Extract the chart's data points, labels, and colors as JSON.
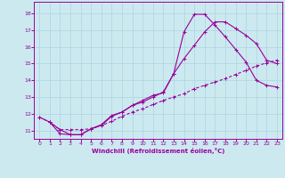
{
  "xlabel": "Windchill (Refroidissement éolien,°C)",
  "bg_color": "#cce9f0",
  "grid_color": "#b0d8e4",
  "line_color": "#990099",
  "xlim": [
    -0.5,
    23.5
  ],
  "ylim": [
    10.5,
    18.7
  ],
  "yticks": [
    11,
    12,
    13,
    14,
    15,
    16,
    17,
    18
  ],
  "xticks": [
    0,
    1,
    2,
    3,
    4,
    5,
    6,
    7,
    8,
    9,
    10,
    11,
    12,
    13,
    14,
    15,
    16,
    17,
    18,
    19,
    20,
    21,
    22,
    23
  ],
  "line1_x": [
    0,
    1,
    2,
    3,
    4,
    5,
    6,
    7,
    8,
    9,
    10,
    11,
    12,
    13,
    14,
    15,
    16,
    17,
    18,
    19,
    20,
    21,
    22,
    23
  ],
  "line1_y": [
    11.8,
    11.5,
    10.8,
    10.75,
    10.75,
    11.1,
    11.35,
    11.9,
    12.1,
    12.5,
    12.7,
    13.0,
    13.3,
    14.4,
    16.9,
    17.95,
    17.95,
    17.3,
    16.6,
    15.85,
    15.1,
    14.0,
    13.7,
    13.6
  ],
  "line2_x": [
    1,
    2,
    3,
    4,
    5,
    6,
    7,
    8,
    9,
    10,
    11,
    12,
    13,
    14,
    15,
    16,
    17,
    18,
    19,
    20,
    21,
    22,
    23
  ],
  "line2_y": [
    11.5,
    11.05,
    10.75,
    10.75,
    11.1,
    11.3,
    11.85,
    12.1,
    12.5,
    12.8,
    13.1,
    13.25,
    14.4,
    15.3,
    16.1,
    16.9,
    17.5,
    17.5,
    17.1,
    16.7,
    16.2,
    15.2,
    15.0
  ],
  "line3_x": [
    0,
    1,
    2,
    3,
    4,
    5,
    6,
    7,
    8,
    9,
    10,
    11,
    12,
    13,
    14,
    15,
    16,
    17,
    18,
    19,
    20,
    21,
    22,
    23
  ],
  "line3_y": [
    11.8,
    11.5,
    11.05,
    11.05,
    11.05,
    11.1,
    11.3,
    11.55,
    11.85,
    12.1,
    12.3,
    12.55,
    12.8,
    13.0,
    13.2,
    13.5,
    13.7,
    13.9,
    14.1,
    14.35,
    14.6,
    14.85,
    15.05,
    15.2
  ]
}
